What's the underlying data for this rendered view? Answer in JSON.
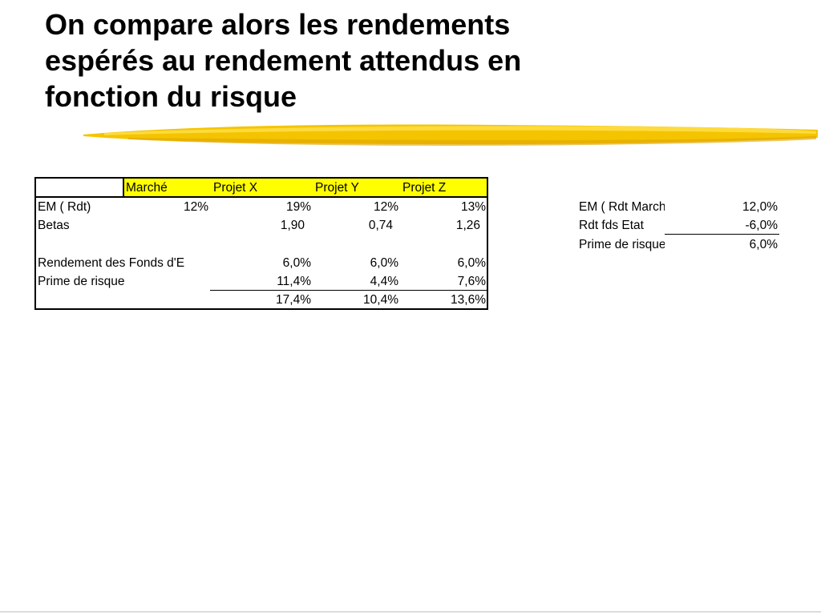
{
  "slide": {
    "title_lines": [
      "On compare alors  les rendements",
      "espérés au rendement attendus en",
      "fonction du risque"
    ]
  },
  "main_table": {
    "columns": [
      "Marché",
      "Projet X",
      "Projet Y",
      "Projet Z"
    ],
    "rows": [
      {
        "label": "EM ( Rdt)",
        "values": [
          "12%",
          "19%",
          "12%",
          "13%"
        ]
      },
      {
        "label": "Betas",
        "values": [
          "",
          "1,90",
          "0,74",
          "1,26"
        ]
      },
      {
        "label": "",
        "values": [
          "",
          "",
          "",
          ""
        ]
      },
      {
        "label": "Rendement des Fonds d'E",
        "values": [
          "",
          "6,0%",
          "6,0%",
          "6,0%"
        ]
      },
      {
        "label": "Prime de risque",
        "values": [
          "",
          "11,4%",
          "4,4%",
          "7,6%"
        ]
      },
      {
        "label": "",
        "values": [
          "",
          "17,4%",
          "10,4%",
          "13,6%"
        ]
      }
    ],
    "header_color": "#ffff00"
  },
  "side_table": {
    "rows": [
      {
        "label": "EM ( Rdt Marché)",
        "value": "12,0%"
      },
      {
        "label": "Rdt fds Etat",
        "value": "-6,0%"
      },
      {
        "label": "Prime de risque",
        "value": "6,0%"
      }
    ]
  },
  "colors": {
    "highlighter": "#f5c400"
  }
}
